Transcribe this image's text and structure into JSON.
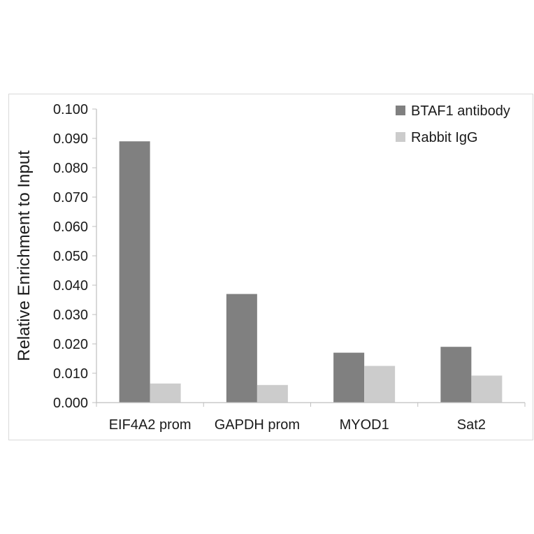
{
  "chart_data": {
    "type": "bar",
    "title": "",
    "xlabel": "",
    "ylabel": "Relative Enrichment to Input",
    "categories": [
      "EIF4A2 prom",
      "GAPDH prom",
      "MYOD1",
      "Sat2"
    ],
    "series": [
      {
        "name": "BTAF1 antibody",
        "values": [
          0.089,
          0.037,
          0.017,
          0.019
        ],
        "color": "#808080"
      },
      {
        "name": "Rabbit IgG",
        "values": [
          0.0065,
          0.006,
          0.0125,
          0.0092
        ],
        "color": "#cccccc"
      }
    ],
    "ylim": [
      0,
      0.1
    ],
    "yticks": [
      "0.000",
      "0.010",
      "0.020",
      "0.030",
      "0.040",
      "0.050",
      "0.060",
      "0.070",
      "0.080",
      "0.090",
      "0.100"
    ],
    "grid": false,
    "legend_position": "top-right"
  }
}
